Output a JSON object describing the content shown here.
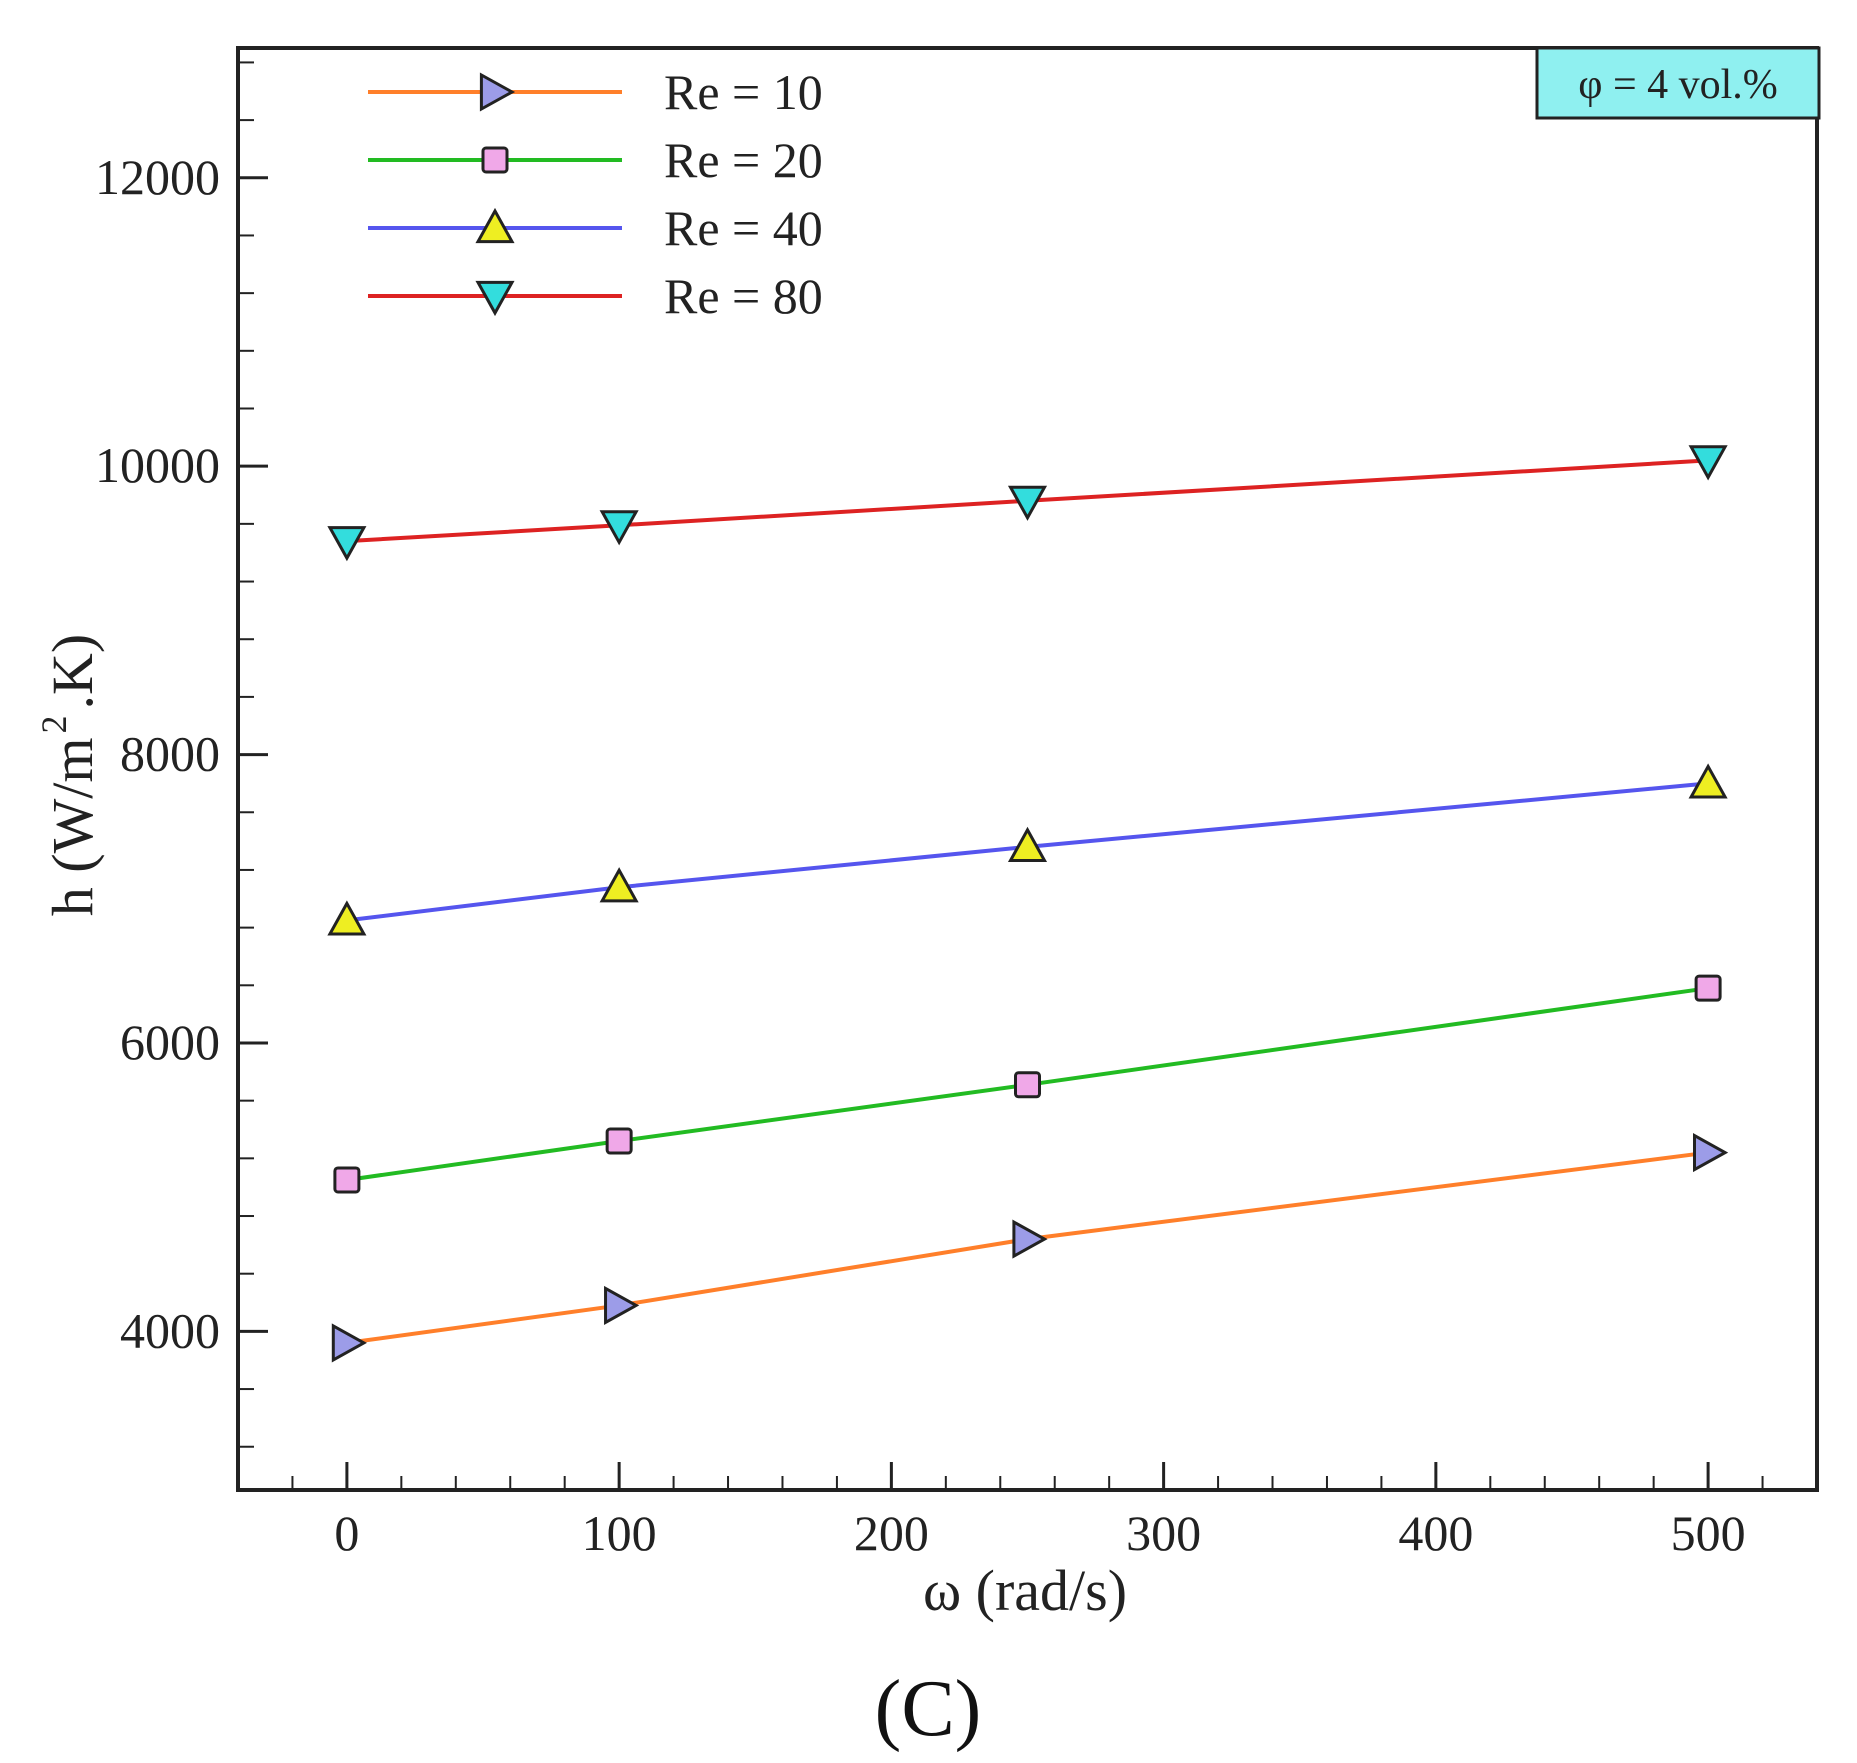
{
  "chart_data": {
    "type": "line",
    "title": "",
    "panel_label": "(C)",
    "xlabel": "ω (rad/s)",
    "ylabel_main": "h (W/m",
    "ylabel_sup": "2",
    "ylabel_tail": ".K)",
    "xlim": [
      -40,
      540
    ],
    "ylim": [
      2900,
      12900
    ],
    "xticks": [
      0,
      100,
      200,
      300,
      400,
      500
    ],
    "xtick_labels": [
      "0",
      "100",
      "200",
      "300",
      "400",
      "500"
    ],
    "x_minor_step": 20,
    "yticks": [
      4000,
      6000,
      8000,
      10000,
      12000
    ],
    "ytick_labels": [
      "4000",
      "6000",
      "8000",
      "10000",
      "12000"
    ],
    "y_minor_step": 400,
    "annotation": "φ = 4 vol.%",
    "annotation_color": "#8ff0f0",
    "legend_position": "top-left",
    "x": [
      0,
      100,
      250,
      500
    ],
    "series": [
      {
        "name": "Re = 10",
        "values": [
          3920,
          4180,
          4640,
          5240
        ],
        "color": "#ff7f2a",
        "marker": "triangle-right",
        "marker_color": "#9c9ce8"
      },
      {
        "name": "Re = 20",
        "values": [
          5050,
          5320,
          5710,
          6380
        ],
        "color": "#22bb22",
        "marker": "square",
        "marker_color": "#f0a8e8"
      },
      {
        "name": "Re = 40",
        "values": [
          6850,
          7080,
          7360,
          7800
        ],
        "color": "#5555ee",
        "marker": "triangle-up",
        "marker_color": "#eeee22"
      },
      {
        "name": "Re = 80",
        "values": [
          9480,
          9590,
          9760,
          10040
        ],
        "color": "#dd2222",
        "marker": "triangle-down",
        "marker_color": "#33dddd"
      }
    ]
  }
}
